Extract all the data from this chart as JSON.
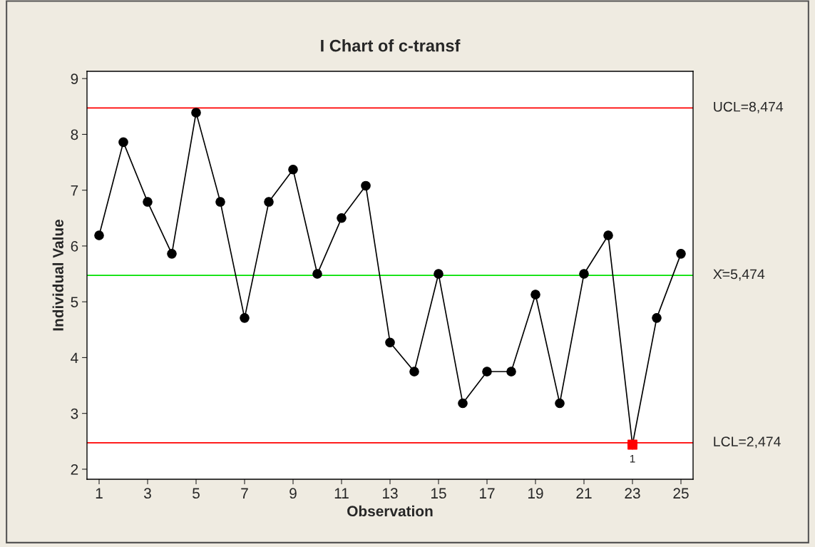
{
  "chart_data": {
    "type": "line",
    "title": "I Chart of c-transf",
    "xlabel": "Observation",
    "ylabel": "Individual Value",
    "x": [
      1,
      2,
      3,
      4,
      5,
      6,
      7,
      8,
      9,
      10,
      11,
      12,
      13,
      14,
      15,
      16,
      17,
      18,
      19,
      20,
      21,
      22,
      23,
      24,
      25
    ],
    "series": [
      {
        "color": "#000000",
        "marker": "circle",
        "values": [
          6.19,
          7.86,
          6.79,
          5.86,
          8.39,
          6.79,
          4.71,
          6.79,
          7.37,
          5.5,
          6.5,
          7.08,
          4.27,
          3.75,
          5.5,
          3.18,
          3.75,
          3.75,
          5.13,
          3.18,
          5.5,
          6.19,
          2.44,
          4.71,
          5.86
        ]
      },
      {
        "type": "scatter",
        "color": "#ff0000",
        "marker": "square",
        "x": [
          23
        ],
        "values": [
          2.44
        ]
      }
    ],
    "xlim": [
      0.5,
      25.5
    ],
    "xticks": [
      1,
      3,
      5,
      7,
      9,
      11,
      13,
      15,
      17,
      19,
      21,
      23,
      25
    ],
    "ylim": [
      1.82,
      9.13
    ],
    "yticks": [
      2,
      3,
      4,
      5,
      6,
      7,
      8,
      9
    ],
    "ref_lines": [
      {
        "axis": "y",
        "value": 8.474,
        "label": "UCL=8,474",
        "color": "#ff0000"
      },
      {
        "axis": "y",
        "value": 5.474,
        "label": "X̄=5,474",
        "color": "#00e000"
      },
      {
        "axis": "y",
        "value": 2.474,
        "label": "LCL=2,474",
        "color": "#ff0000"
      }
    ],
    "annotations": [
      {
        "text": "1",
        "x": 23,
        "y": 2.44
      }
    ],
    "grid": false,
    "legend": false,
    "line_style": "solid"
  }
}
